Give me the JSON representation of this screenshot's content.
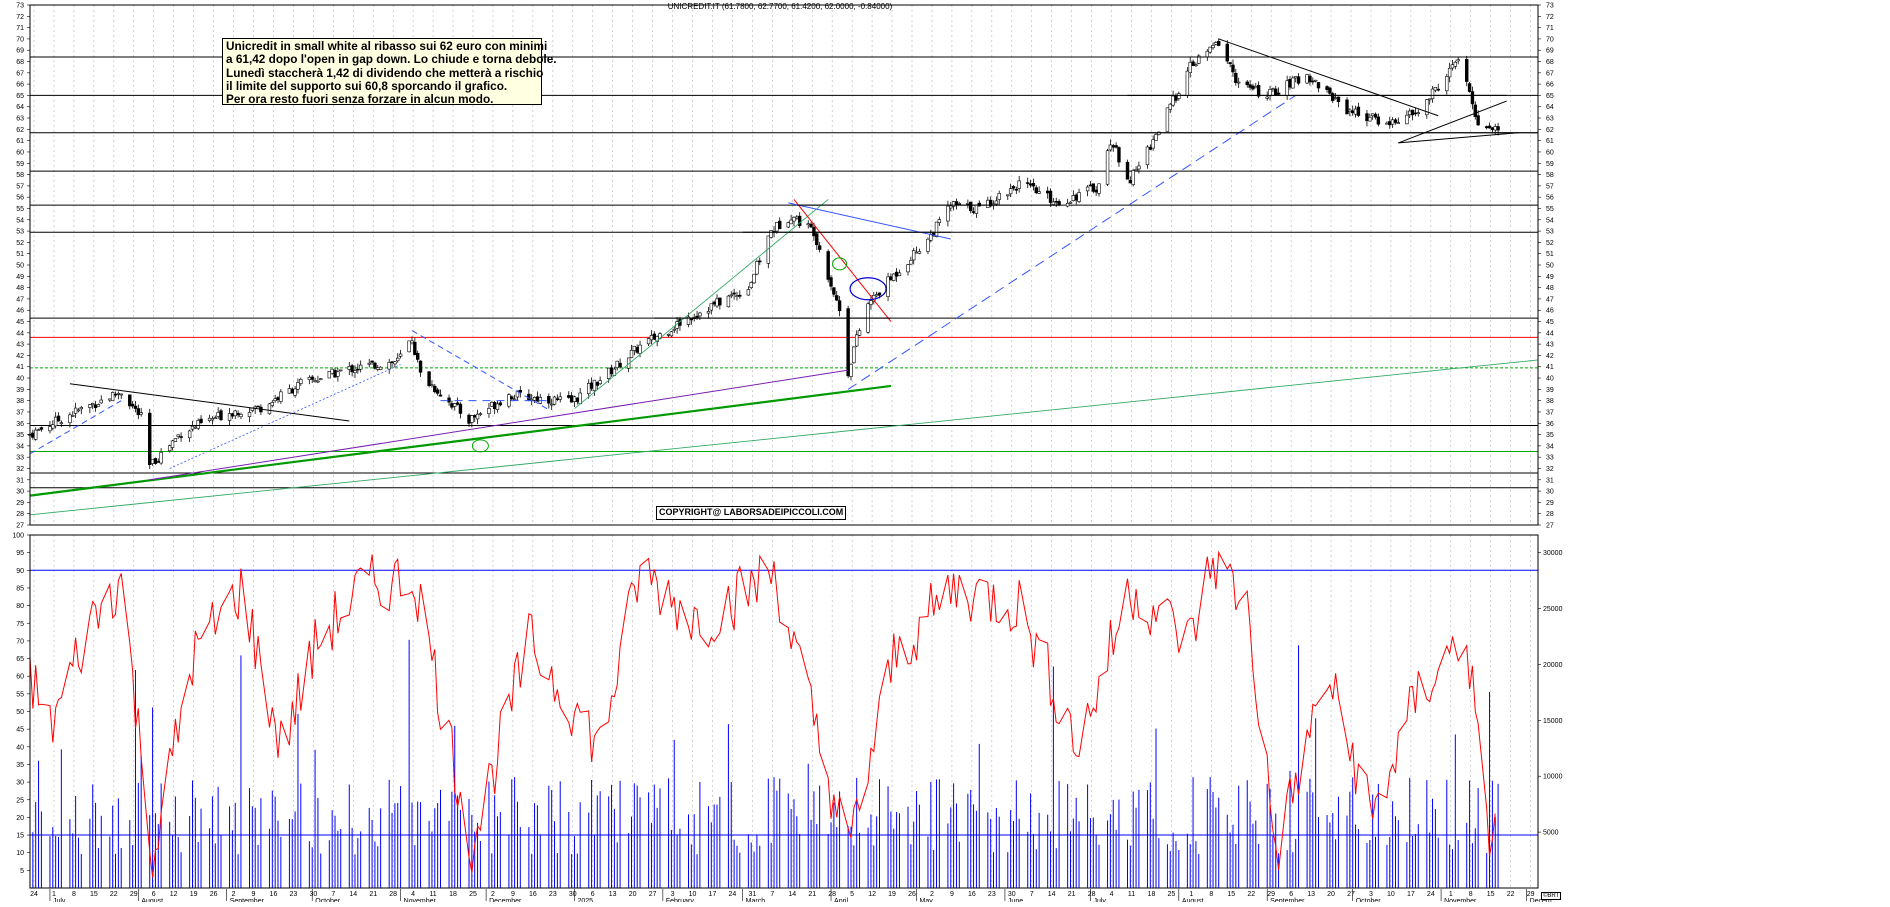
{
  "chart_data": [
    {
      "type": "candlestick",
      "title": "UNICREDIT.IT (61.7800, 62.7700, 61.4200, 62.0000, -0.84000)",
      "ylim": [
        27,
        73
      ],
      "y_ticks": [
        27,
        28,
        29,
        30,
        31,
        32,
        33,
        34,
        35,
        36,
        37,
        38,
        39,
        40,
        41,
        42,
        43,
        44,
        45,
        46,
        47,
        48,
        49,
        50,
        51,
        52,
        53,
        54,
        55,
        56,
        57,
        58,
        59,
        60,
        61,
        62,
        63,
        64,
        65,
        66,
        67,
        68,
        69,
        70,
        71,
        72,
        73
      ],
      "grid": true,
      "x_start": "2024-06-24",
      "x_end": "2025-12-05",
      "close_keypoints": [
        {
          "date": "2024-06-24",
          "close": 35.0
        },
        {
          "date": "2024-07-08",
          "close": 36.8
        },
        {
          "date": "2024-07-26",
          "close": 38.8
        },
        {
          "date": "2024-08-02",
          "close": 36.5
        },
        {
          "date": "2024-08-05",
          "close": 32.2
        },
        {
          "date": "2024-08-16",
          "close": 35.2
        },
        {
          "date": "2024-09-02",
          "close": 37.0
        },
        {
          "date": "2024-09-13",
          "close": 37.4
        },
        {
          "date": "2024-09-27",
          "close": 39.5
        },
        {
          "date": "2024-10-14",
          "close": 40.8
        },
        {
          "date": "2024-10-31",
          "close": 41.5
        },
        {
          "date": "2024-11-05",
          "close": 43.5
        },
        {
          "date": "2024-11-08",
          "close": 40.3
        },
        {
          "date": "2024-11-25",
          "close": 36.3
        },
        {
          "date": "2024-12-09",
          "close": 38.5
        },
        {
          "date": "2024-12-31",
          "close": 37.9
        },
        {
          "date": "2025-01-13",
          "close": 40.5
        },
        {
          "date": "2025-01-24",
          "close": 42.8
        },
        {
          "date": "2025-02-11",
          "close": 45.5
        },
        {
          "date": "2025-03-03",
          "close": 48.0
        },
        {
          "date": "2025-03-11",
          "close": 53.0
        },
        {
          "date": "2025-03-18",
          "close": 54.4
        },
        {
          "date": "2025-03-26",
          "close": 53.0
        },
        {
          "date": "2025-04-04",
          "close": 46.0
        },
        {
          "date": "2025-04-07",
          "close": 40.5
        },
        {
          "date": "2025-04-09",
          "close": 42.7
        },
        {
          "date": "2025-04-14",
          "close": 46.5
        },
        {
          "date": "2025-04-22",
          "close": 48.8
        },
        {
          "date": "2025-05-06",
          "close": 52.6
        },
        {
          "date": "2025-05-13",
          "close": 55.3
        },
        {
          "date": "2025-05-23",
          "close": 55.0
        },
        {
          "date": "2025-06-06",
          "close": 57.2
        },
        {
          "date": "2025-06-20",
          "close": 55.5
        },
        {
          "date": "2025-07-04",
          "close": 57.0
        },
        {
          "date": "2025-07-08",
          "close": 61.0
        },
        {
          "date": "2025-07-15",
          "close": 57.5
        },
        {
          "date": "2025-07-25",
          "close": 62.0
        },
        {
          "date": "2025-08-05",
          "close": 67.5
        },
        {
          "date": "2025-08-15",
          "close": 69.7
        },
        {
          "date": "2025-08-22",
          "close": 66.0
        },
        {
          "date": "2025-09-01",
          "close": 65.0
        },
        {
          "date": "2025-09-15",
          "close": 66.8
        },
        {
          "date": "2025-09-29",
          "close": 63.8
        },
        {
          "date": "2025-10-13",
          "close": 62.5
        },
        {
          "date": "2025-10-24",
          "close": 63.5
        },
        {
          "date": "2025-11-07",
          "close": 68.2
        },
        {
          "date": "2025-11-12",
          "close": 64.3
        },
        {
          "date": "2025-11-14",
          "close": 62.5
        },
        {
          "date": "2025-11-21",
          "close": 62.0
        }
      ],
      "horizontal_levels": [
        {
          "y": 43.6,
          "color": "#ff0000"
        },
        {
          "y": 40.9,
          "color": "#00aa00",
          "style": "dotted"
        },
        {
          "y": 35.8,
          "color": "#000000"
        },
        {
          "y": 33.5,
          "color": "#00aa00"
        },
        {
          "y": 31.6,
          "color": "#000000"
        },
        {
          "y": 30.3,
          "color": "#000000"
        },
        {
          "y": 52.9,
          "color": "#000000"
        },
        {
          "y": 61.7,
          "color": "#000000"
        },
        {
          "y": 65.0,
          "color": "#000000"
        },
        {
          "y": 68.4,
          "color": "#000000"
        },
        {
          "y": 58.3,
          "color": "#000000"
        },
        {
          "y": 55.3,
          "color": "#000000"
        },
        {
          "y": 45.3,
          "color": "#000000"
        }
      ]
    },
    {
      "type": "line+bar",
      "left_ylim": [
        0,
        100
      ],
      "left_ticks": [
        5,
        10,
        15,
        20,
        25,
        30,
        35,
        40,
        45,
        50,
        55,
        60,
        65,
        70,
        75,
        80,
        85,
        90,
        95,
        100
      ],
      "right_ticks": [
        5000,
        10000,
        15000,
        20000,
        25000,
        30000
      ],
      "reference_levels": [
        90,
        15
      ],
      "oscillator_keypoints": [
        {
          "date": "2024-06-24",
          "value": 60
        },
        {
          "date": "2024-07-01",
          "value": 45
        },
        {
          "date": "2024-07-15",
          "value": 75
        },
        {
          "date": "2024-07-26",
          "value": 88
        },
        {
          "date": "2024-08-06",
          "value": 8
        },
        {
          "date": "2024-08-20",
          "value": 65
        },
        {
          "date": "2024-09-06",
          "value": 85
        },
        {
          "date": "2024-09-20",
          "value": 40
        },
        {
          "date": "2024-10-03",
          "value": 70
        },
        {
          "date": "2024-10-18",
          "value": 85
        },
        {
          "date": "2024-11-06",
          "value": 88
        },
        {
          "date": "2024-11-26",
          "value": 12
        },
        {
          "date": "2024-12-16",
          "value": 70
        },
        {
          "date": "2025-01-10",
          "value": 40
        },
        {
          "date": "2025-01-24",
          "value": 90
        },
        {
          "date": "2025-02-14",
          "value": 75
        },
        {
          "date": "2025-03-12",
          "value": 90
        },
        {
          "date": "2025-04-07",
          "value": 10
        },
        {
          "date": "2025-04-23",
          "value": 65
        },
        {
          "date": "2025-05-14",
          "value": 85
        },
        {
          "date": "2025-06-06",
          "value": 80
        },
        {
          "date": "2025-06-27",
          "value": 40
        },
        {
          "date": "2025-07-15",
          "value": 85
        },
        {
          "date": "2025-08-05",
          "value": 70
        },
        {
          "date": "2025-08-13",
          "value": 93
        },
        {
          "date": "2025-08-25",
          "value": 80
        },
        {
          "date": "2025-09-04",
          "value": 10
        },
        {
          "date": "2025-09-22",
          "value": 60
        },
        {
          "date": "2025-10-08",
          "value": 20
        },
        {
          "date": "2025-10-24",
          "value": 55
        },
        {
          "date": "2025-11-10",
          "value": 72
        },
        {
          "date": "2025-11-17",
          "value": 15
        },
        {
          "date": "2025-11-21",
          "value": 18
        }
      ]
    }
  ],
  "header": {
    "title": "UNICREDIT.IT (61.7800, 62.7700, 61.4200, 62.0000, -0.84000)"
  },
  "note": {
    "lines": [
      "Unicredit in small white al ribasso sui 62 euro con minimi",
      "a 61,42 dopo l'open in gap down. Lo chiude e torna debole.",
      "Lunedì staccherà 1,42 di dividendo che metterà a rischio",
      "il limite del supporto sui 60,8 sporcando il grafico.",
      "Per ora resto fuori senza forzare in alcun modo."
    ]
  },
  "copyright": "COPYRIGHT@ LABORSADEIPICCOLI.COM",
  "badge": "©BRT",
  "x_axis": {
    "day_labels": [
      "24",
      "1",
      "8",
      "15",
      "22",
      "29",
      "6",
      "12",
      "19",
      "26",
      "2",
      "9",
      "16",
      "23",
      "30",
      "7",
      "14",
      "21",
      "28",
      "4",
      "11",
      "18",
      "25",
      "2",
      "9",
      "16",
      "23",
      "30",
      "6",
      "13",
      "20",
      "27",
      "3",
      "10",
      "17",
      "24",
      "31",
      "7",
      "14",
      "21",
      "28",
      "5",
      "12",
      "19",
      "26",
      "2",
      "9",
      "16",
      "23",
      "30",
      "7",
      "14",
      "21",
      "28",
      "4",
      "11",
      "18",
      "25",
      "1",
      "8",
      "15",
      "22",
      "29",
      "6",
      "13",
      "20",
      "27",
      "3",
      "10",
      "17",
      "24",
      "1",
      "8",
      "15",
      "22",
      "29",
      "6",
      "13",
      "20",
      "27",
      "3",
      "10",
      "17",
      "24",
      "1"
    ],
    "month_labels": [
      "July",
      "August",
      "September",
      "October",
      "November",
      "December",
      "2025",
      "February",
      "March",
      "April",
      "May",
      "June",
      "July",
      "August",
      "September",
      "October",
      "November",
      "Decem"
    ]
  },
  "colors": {
    "bull_candle": "#ffffff",
    "bear_candle": "#000000",
    "volume": "#0000ff",
    "oscillator": "#ff0000",
    "grid": "#b4b4b4"
  }
}
